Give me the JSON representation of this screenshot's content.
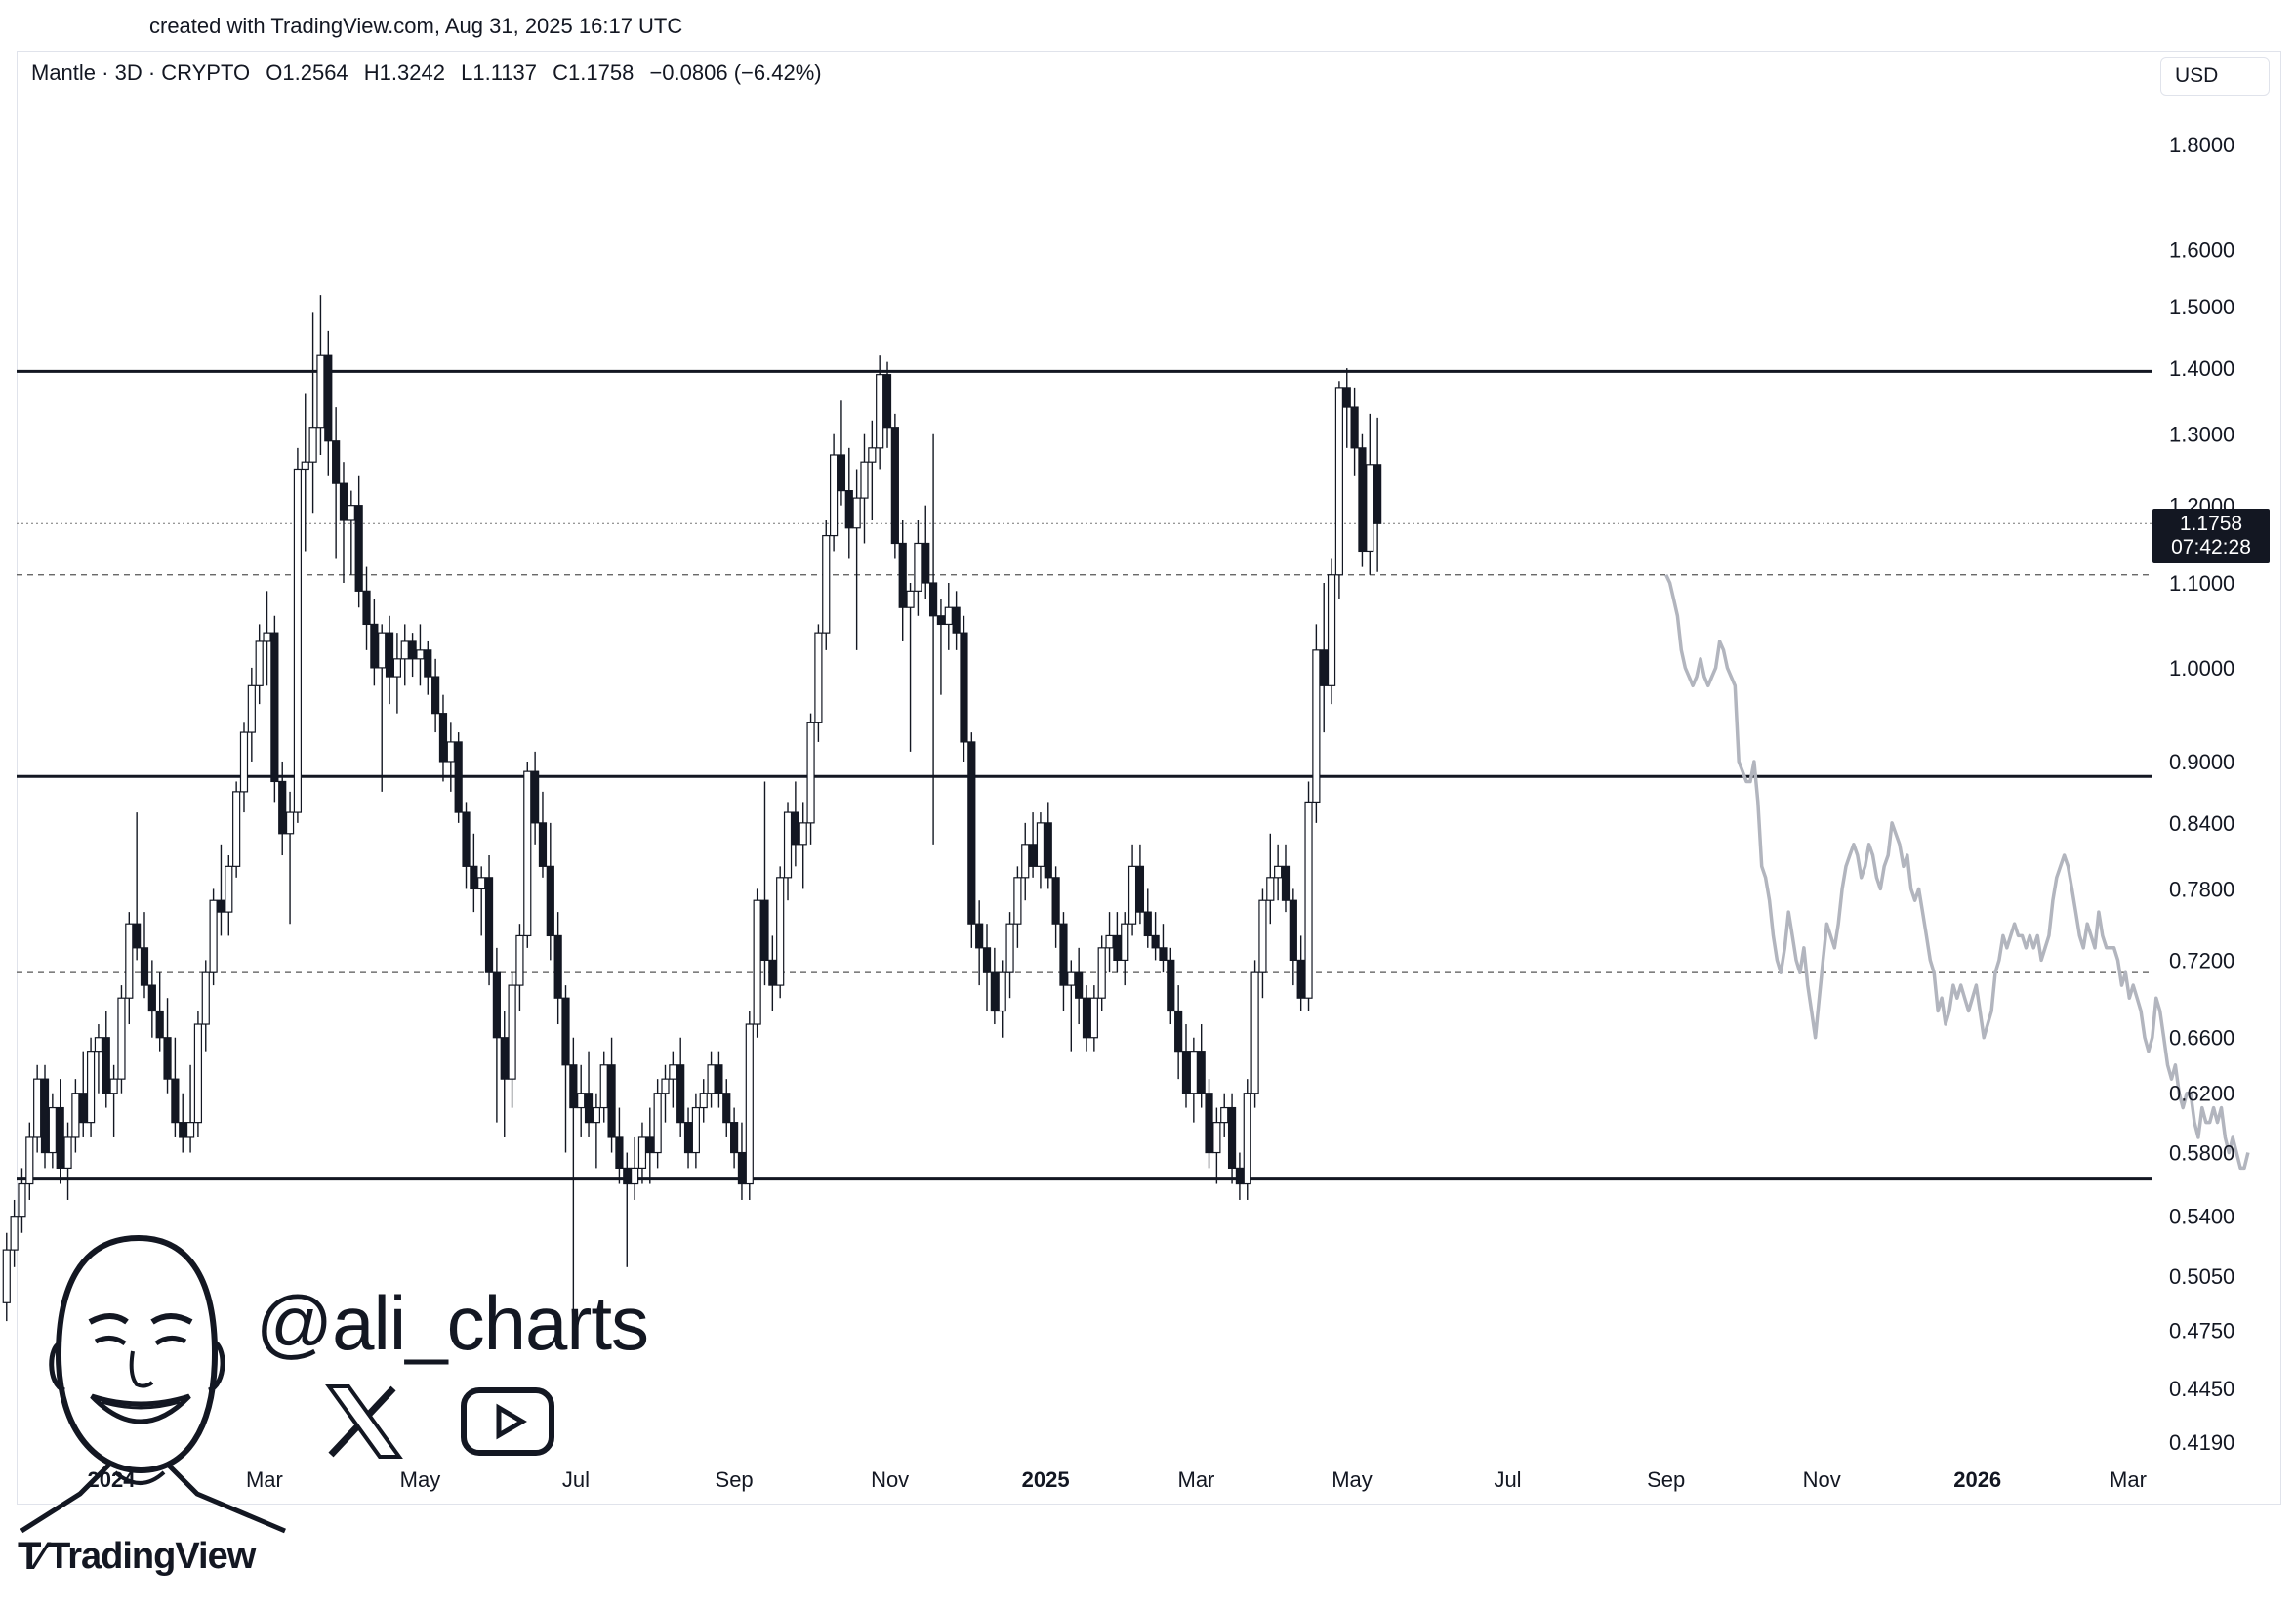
{
  "watermark": {
    "created_text": "created with TradingView.com, Aug 31, 2025 16:17 UTC"
  },
  "header": {
    "symbol": "Mantle · 3D · CRYPTO",
    "open": "O1.2564",
    "high": "H1.3242",
    "low": "L1.1137",
    "close": "C1.1758",
    "change": "−0.0806 (−6.42%)"
  },
  "currency_button": "USD",
  "price_tag": {
    "price": "1.1758",
    "countdown": "07:42:28"
  },
  "branding": {
    "handle": "@ali_charts",
    "footer_logo": "TradingView",
    "social_icons": [
      "x-icon",
      "youtube-icon"
    ]
  },
  "chart_data": {
    "type": "candlestick",
    "title": "",
    "y_scale": "log",
    "ylim": [
      0.4,
      1.95
    ],
    "xlim": [
      "2023-11-20",
      "2026-03-05"
    ],
    "y_ticks": [
      "1.8000",
      "1.6000",
      "1.5000",
      "1.4000",
      "1.3000",
      "1.2000",
      "1.1000",
      "1.0000",
      "0.9000",
      "0.8400",
      "0.7800",
      "0.7200",
      "0.6600",
      "0.6200",
      "0.5800",
      "0.5400",
      "0.5050",
      "0.4750",
      "0.4450",
      "0.4190"
    ],
    "x_ticks": [
      {
        "date": "2024-01-01",
        "label": "2024",
        "bold": true
      },
      {
        "date": "2024-03-01",
        "label": "Mar"
      },
      {
        "date": "2024-05-01",
        "label": "May"
      },
      {
        "date": "2024-07-01",
        "label": "Jul"
      },
      {
        "date": "2024-09-01",
        "label": "Sep"
      },
      {
        "date": "2024-11-01",
        "label": "Nov"
      },
      {
        "date": "2025-01-01",
        "label": "2025",
        "bold": true
      },
      {
        "date": "2025-03-01",
        "label": "Mar"
      },
      {
        "date": "2025-05-01",
        "label": "May"
      },
      {
        "date": "2025-07-01",
        "label": "Jul"
      },
      {
        "date": "2025-09-01",
        "label": "Sep"
      },
      {
        "date": "2025-11-01",
        "label": "Nov"
      },
      {
        "date": "2026-01-01",
        "label": "2026",
        "bold": true
      },
      {
        "date": "2026-03-01",
        "label": "Mar"
      }
    ],
    "horizontal_levels": [
      {
        "price": 1.395,
        "style": "solid"
      },
      {
        "price": 0.885,
        "style": "solid"
      },
      {
        "price": 0.563,
        "style": "solid"
      },
      {
        "price": 1.11,
        "style": "dashed"
      },
      {
        "price": 0.71,
        "style": "dashed"
      },
      {
        "price": 1.1758,
        "style": "dotted"
      }
    ],
    "candles_start_date": "2023-11-21",
    "candle_interval_days": 3,
    "candles": [
      [
        0.49,
        0.53,
        0.48,
        0.52
      ],
      [
        0.52,
        0.55,
        0.51,
        0.54
      ],
      [
        0.54,
        0.57,
        0.53,
        0.56
      ],
      [
        0.56,
        0.6,
        0.55,
        0.59
      ],
      [
        0.59,
        0.64,
        0.58,
        0.63
      ],
      [
        0.63,
        0.64,
        0.57,
        0.58
      ],
      [
        0.58,
        0.62,
        0.57,
        0.61
      ],
      [
        0.61,
        0.63,
        0.56,
        0.57
      ],
      [
        0.57,
        0.6,
        0.55,
        0.59
      ],
      [
        0.59,
        0.63,
        0.58,
        0.62
      ],
      [
        0.62,
        0.65,
        0.59,
        0.6
      ],
      [
        0.6,
        0.66,
        0.59,
        0.65
      ],
      [
        0.65,
        0.67,
        0.62,
        0.66
      ],
      [
        0.66,
        0.68,
        0.61,
        0.62
      ],
      [
        0.62,
        0.64,
        0.59,
        0.63
      ],
      [
        0.63,
        0.7,
        0.62,
        0.69
      ],
      [
        0.69,
        0.76,
        0.67,
        0.75
      ],
      [
        0.75,
        0.85,
        0.72,
        0.73
      ],
      [
        0.73,
        0.76,
        0.69,
        0.7
      ],
      [
        0.7,
        0.72,
        0.66,
        0.68
      ],
      [
        0.68,
        0.71,
        0.65,
        0.66
      ],
      [
        0.66,
        0.69,
        0.62,
        0.63
      ],
      [
        0.63,
        0.66,
        0.59,
        0.6
      ],
      [
        0.6,
        0.62,
        0.58,
        0.59
      ],
      [
        0.59,
        0.64,
        0.58,
        0.6
      ],
      [
        0.6,
        0.68,
        0.59,
        0.67
      ],
      [
        0.67,
        0.72,
        0.65,
        0.71
      ],
      [
        0.71,
        0.78,
        0.7,
        0.77
      ],
      [
        0.77,
        0.82,
        0.74,
        0.76
      ],
      [
        0.76,
        0.81,
        0.74,
        0.8
      ],
      [
        0.8,
        0.88,
        0.79,
        0.87
      ],
      [
        0.87,
        0.94,
        0.85,
        0.93
      ],
      [
        0.93,
        1.0,
        0.9,
        0.98
      ],
      [
        0.98,
        1.05,
        0.96,
        1.03
      ],
      [
        1.03,
        1.09,
        0.98,
        1.04
      ],
      [
        1.04,
        1.06,
        0.86,
        0.88
      ],
      [
        0.88,
        0.9,
        0.81,
        0.83
      ],
      [
        0.83,
        0.87,
        0.75,
        0.85
      ],
      [
        0.85,
        1.28,
        0.84,
        1.25
      ],
      [
        1.25,
        1.36,
        1.14,
        1.26
      ],
      [
        1.26,
        1.49,
        1.19,
        1.31
      ],
      [
        1.31,
        1.52,
        1.27,
        1.42
      ],
      [
        1.42,
        1.46,
        1.24,
        1.29
      ],
      [
        1.29,
        1.34,
        1.13,
        1.23
      ],
      [
        1.23,
        1.26,
        1.1,
        1.18
      ],
      [
        1.18,
        1.22,
        1.11,
        1.2
      ],
      [
        1.2,
        1.24,
        1.07,
        1.09
      ],
      [
        1.09,
        1.12,
        1.02,
        1.05
      ],
      [
        1.05,
        1.08,
        0.98,
        1.0
      ],
      [
        1.0,
        1.05,
        0.87,
        1.04
      ],
      [
        1.04,
        1.06,
        0.96,
        0.99
      ],
      [
        0.99,
        1.04,
        0.95,
        1.01
      ],
      [
        1.01,
        1.05,
        0.98,
        1.03
      ],
      [
        1.03,
        1.04,
        0.99,
        1.01
      ],
      [
        1.01,
        1.05,
        0.98,
        1.02
      ],
      [
        1.02,
        1.03,
        0.97,
        0.99
      ],
      [
        0.99,
        1.01,
        0.93,
        0.95
      ],
      [
        0.95,
        0.97,
        0.88,
        0.9
      ],
      [
        0.9,
        0.94,
        0.87,
        0.92
      ],
      [
        0.92,
        0.93,
        0.84,
        0.85
      ],
      [
        0.85,
        0.86,
        0.78,
        0.8
      ],
      [
        0.8,
        0.83,
        0.76,
        0.78
      ],
      [
        0.78,
        0.8,
        0.74,
        0.79
      ],
      [
        0.79,
        0.81,
        0.7,
        0.71
      ],
      [
        0.71,
        0.73,
        0.6,
        0.66
      ],
      [
        0.66,
        0.68,
        0.59,
        0.63
      ],
      [
        0.63,
        0.71,
        0.61,
        0.7
      ],
      [
        0.7,
        0.75,
        0.68,
        0.74
      ],
      [
        0.74,
        0.9,
        0.73,
        0.89
      ],
      [
        0.89,
        0.91,
        0.82,
        0.84
      ],
      [
        0.84,
        0.87,
        0.79,
        0.8
      ],
      [
        0.8,
        0.84,
        0.72,
        0.74
      ],
      [
        0.74,
        0.76,
        0.67,
        0.69
      ],
      [
        0.69,
        0.7,
        0.58,
        0.64
      ],
      [
        0.64,
        0.66,
        0.48,
        0.61
      ],
      [
        0.61,
        0.64,
        0.59,
        0.62
      ],
      [
        0.62,
        0.65,
        0.59,
        0.6
      ],
      [
        0.6,
        0.62,
        0.57,
        0.61
      ],
      [
        0.61,
        0.65,
        0.6,
        0.64
      ],
      [
        0.64,
        0.66,
        0.58,
        0.59
      ],
      [
        0.59,
        0.61,
        0.56,
        0.57
      ],
      [
        0.57,
        0.58,
        0.51,
        0.56
      ],
      [
        0.56,
        0.59,
        0.55,
        0.57
      ],
      [
        0.57,
        0.6,
        0.56,
        0.59
      ],
      [
        0.59,
        0.61,
        0.56,
        0.58
      ],
      [
        0.58,
        0.63,
        0.57,
        0.62
      ],
      [
        0.62,
        0.64,
        0.6,
        0.63
      ],
      [
        0.63,
        0.65,
        0.61,
        0.64
      ],
      [
        0.64,
        0.66,
        0.59,
        0.6
      ],
      [
        0.6,
        0.61,
        0.57,
        0.58
      ],
      [
        0.58,
        0.62,
        0.57,
        0.61
      ],
      [
        0.61,
        0.63,
        0.6,
        0.62
      ],
      [
        0.62,
        0.65,
        0.61,
        0.64
      ],
      [
        0.64,
        0.65,
        0.61,
        0.62
      ],
      [
        0.62,
        0.63,
        0.59,
        0.6
      ],
      [
        0.6,
        0.61,
        0.57,
        0.58
      ],
      [
        0.58,
        0.6,
        0.55,
        0.56
      ],
      [
        0.56,
        0.68,
        0.55,
        0.67
      ],
      [
        0.67,
        0.78,
        0.66,
        0.77
      ],
      [
        0.77,
        0.88,
        0.7,
        0.72
      ],
      [
        0.72,
        0.74,
        0.68,
        0.7
      ],
      [
        0.7,
        0.8,
        0.69,
        0.79
      ],
      [
        0.79,
        0.86,
        0.77,
        0.85
      ],
      [
        0.85,
        0.88,
        0.8,
        0.82
      ],
      [
        0.82,
        0.86,
        0.78,
        0.84
      ],
      [
        0.84,
        0.95,
        0.82,
        0.94
      ],
      [
        0.94,
        1.05,
        0.92,
        1.04
      ],
      [
        1.04,
        1.18,
        1.02,
        1.16
      ],
      [
        1.16,
        1.3,
        1.14,
        1.27
      ],
      [
        1.27,
        1.35,
        1.2,
        1.22
      ],
      [
        1.22,
        1.28,
        1.13,
        1.17
      ],
      [
        1.17,
        1.25,
        1.02,
        1.21
      ],
      [
        1.21,
        1.3,
        1.15,
        1.26
      ],
      [
        1.26,
        1.32,
        1.18,
        1.28
      ],
      [
        1.28,
        1.42,
        1.25,
        1.39
      ],
      [
        1.39,
        1.41,
        1.28,
        1.31
      ],
      [
        1.31,
        1.33,
        1.13,
        1.15
      ],
      [
        1.15,
        1.18,
        1.03,
        1.07
      ],
      [
        1.07,
        1.1,
        0.91,
        1.09
      ],
      [
        1.09,
        1.18,
        1.06,
        1.15
      ],
      [
        1.15,
        1.2,
        1.08,
        1.1
      ],
      [
        1.1,
        1.3,
        0.82,
        1.06
      ],
      [
        1.06,
        1.08,
        0.97,
        1.05
      ],
      [
        1.05,
        1.1,
        1.02,
        1.07
      ],
      [
        1.07,
        1.09,
        1.02,
        1.04
      ],
      [
        1.04,
        1.06,
        0.9,
        0.92
      ],
      [
        0.92,
        0.93,
        0.73,
        0.75
      ],
      [
        0.75,
        0.77,
        0.7,
        0.73
      ],
      [
        0.73,
        0.75,
        0.68,
        0.71
      ],
      [
        0.71,
        0.73,
        0.67,
        0.68
      ],
      [
        0.68,
        0.72,
        0.66,
        0.71
      ],
      [
        0.71,
        0.76,
        0.69,
        0.75
      ],
      [
        0.75,
        0.8,
        0.73,
        0.79
      ],
      [
        0.79,
        0.84,
        0.77,
        0.82
      ],
      [
        0.82,
        0.85,
        0.79,
        0.8
      ],
      [
        0.8,
        0.85,
        0.78,
        0.84
      ],
      [
        0.84,
        0.86,
        0.78,
        0.79
      ],
      [
        0.79,
        0.8,
        0.73,
        0.75
      ],
      [
        0.75,
        0.76,
        0.68,
        0.7
      ],
      [
        0.7,
        0.72,
        0.65,
        0.71
      ],
      [
        0.71,
        0.73,
        0.67,
        0.69
      ],
      [
        0.69,
        0.7,
        0.65,
        0.66
      ],
      [
        0.66,
        0.7,
        0.65,
        0.69
      ],
      [
        0.69,
        0.74,
        0.68,
        0.73
      ],
      [
        0.73,
        0.76,
        0.71,
        0.74
      ],
      [
        0.74,
        0.76,
        0.71,
        0.72
      ],
      [
        0.72,
        0.76,
        0.7,
        0.75
      ],
      [
        0.75,
        0.82,
        0.74,
        0.8
      ],
      [
        0.8,
        0.82,
        0.75,
        0.76
      ],
      [
        0.76,
        0.78,
        0.73,
        0.74
      ],
      [
        0.74,
        0.76,
        0.72,
        0.73
      ],
      [
        0.73,
        0.75,
        0.71,
        0.72
      ],
      [
        0.72,
        0.73,
        0.67,
        0.68
      ],
      [
        0.68,
        0.7,
        0.63,
        0.65
      ],
      [
        0.65,
        0.67,
        0.61,
        0.62
      ],
      [
        0.62,
        0.66,
        0.6,
        0.65
      ],
      [
        0.65,
        0.67,
        0.61,
        0.62
      ],
      [
        0.62,
        0.63,
        0.57,
        0.58
      ],
      [
        0.58,
        0.61,
        0.56,
        0.6
      ],
      [
        0.6,
        0.62,
        0.59,
        0.61
      ],
      [
        0.61,
        0.62,
        0.56,
        0.57
      ],
      [
        0.57,
        0.58,
        0.55,
        0.56
      ],
      [
        0.56,
        0.63,
        0.55,
        0.62
      ],
      [
        0.62,
        0.72,
        0.61,
        0.71
      ],
      [
        0.71,
        0.78,
        0.69,
        0.77
      ],
      [
        0.77,
        0.83,
        0.75,
        0.79
      ],
      [
        0.79,
        0.82,
        0.77,
        0.8
      ],
      [
        0.8,
        0.82,
        0.76,
        0.77
      ],
      [
        0.77,
        0.78,
        0.7,
        0.72
      ],
      [
        0.72,
        0.74,
        0.68,
        0.69
      ],
      [
        0.69,
        0.88,
        0.68,
        0.86
      ],
      [
        0.86,
        1.05,
        0.84,
        1.02
      ],
      [
        1.02,
        1.1,
        0.93,
        0.98
      ],
      [
        0.98,
        1.13,
        0.96,
        1.11
      ],
      [
        1.11,
        1.38,
        1.08,
        1.37
      ],
      [
        1.37,
        1.4,
        1.28,
        1.34
      ],
      [
        1.34,
        1.37,
        1.24,
        1.28
      ],
      [
        1.28,
        1.3,
        1.12,
        1.14
      ],
      [
        1.14,
        1.33,
        1.11,
        1.2564
      ],
      [
        1.2564,
        1.3242,
        1.1137,
        1.1758
      ]
    ],
    "projection_start_date": "2025-09-01",
    "projection_step_days": 1.5,
    "projection": [
      1.11,
      1.1,
      1.08,
      1.06,
      1.02,
      1.0,
      0.99,
      0.98,
      0.99,
      1.01,
      0.99,
      0.98,
      0.99,
      1.0,
      1.03,
      1.02,
      1.0,
      0.99,
      0.98,
      0.9,
      0.89,
      0.88,
      0.88,
      0.9,
      0.86,
      0.8,
      0.79,
      0.77,
      0.74,
      0.72,
      0.71,
      0.73,
      0.76,
      0.74,
      0.72,
      0.71,
      0.73,
      0.7,
      0.68,
      0.66,
      0.69,
      0.72,
      0.75,
      0.74,
      0.73,
      0.75,
      0.78,
      0.8,
      0.81,
      0.82,
      0.81,
      0.79,
      0.8,
      0.82,
      0.81,
      0.79,
      0.78,
      0.8,
      0.81,
      0.84,
      0.83,
      0.82,
      0.8,
      0.81,
      0.78,
      0.77,
      0.78,
      0.76,
      0.74,
      0.72,
      0.71,
      0.68,
      0.69,
      0.67,
      0.68,
      0.7,
      0.69,
      0.7,
      0.69,
      0.68,
      0.69,
      0.7,
      0.68,
      0.66,
      0.67,
      0.68,
      0.71,
      0.72,
      0.74,
      0.73,
      0.74,
      0.75,
      0.74,
      0.74,
      0.73,
      0.74,
      0.73,
      0.74,
      0.72,
      0.73,
      0.74,
      0.77,
      0.79,
      0.8,
      0.81,
      0.8,
      0.78,
      0.76,
      0.74,
      0.73,
      0.75,
      0.74,
      0.73,
      0.76,
      0.74,
      0.73,
      0.73,
      0.73,
      0.72,
      0.7,
      0.71,
      0.69,
      0.7,
      0.69,
      0.68,
      0.66,
      0.65,
      0.66,
      0.69,
      0.68,
      0.66,
      0.64,
      0.63,
      0.64,
      0.62,
      0.61,
      0.62,
      0.62,
      0.6,
      0.59,
      0.61,
      0.6,
      0.6,
      0.61,
      0.6,
      0.61,
      0.59,
      0.58,
      0.59,
      0.58,
      0.57,
      0.57,
      0.58
    ]
  }
}
